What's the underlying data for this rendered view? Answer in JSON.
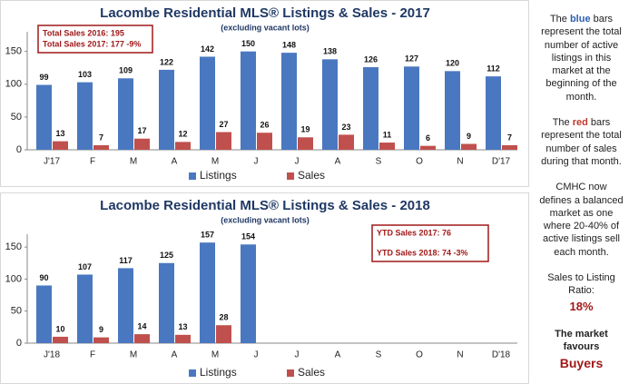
{
  "chart_data": [
    {
      "type": "bar",
      "title": "Lacombe Residential MLS® Listings & Sales - 2017",
      "subtitle": "(excluding vacant lots)",
      "categories": [
        "J'17",
        "F",
        "M",
        "A",
        "M",
        "J",
        "J",
        "A",
        "S",
        "O",
        "N",
        "D'17"
      ],
      "series": [
        {
          "name": "Listings",
          "color": "#4a78c0",
          "values": [
            99,
            103,
            109,
            122,
            142,
            150,
            148,
            138,
            126,
            127,
            120,
            112
          ]
        },
        {
          "name": "Sales",
          "color": "#c0504d",
          "values": [
            13,
            7,
            17,
            12,
            27,
            26,
            19,
            23,
            11,
            6,
            9,
            7
          ]
        }
      ],
      "ylim": [
        0,
        180
      ],
      "yticks": [
        0,
        50,
        100,
        150
      ],
      "annotations": [
        "Total Sales 2016: 195",
        "Total Sales 2017: 177 -9%"
      ]
    },
    {
      "type": "bar",
      "title": "Lacombe Residential MLS® Listings & Sales - 2018",
      "subtitle": "(excluding vacant lots)",
      "categories": [
        "J'18",
        "F",
        "M",
        "A",
        "M",
        "J",
        "J",
        "A",
        "S",
        "O",
        "N",
        "D'18"
      ],
      "series": [
        {
          "name": "Listings",
          "color": "#4a78c0",
          "values": [
            90,
            107,
            117,
            125,
            157,
            154,
            null,
            null,
            null,
            null,
            null,
            null
          ]
        },
        {
          "name": "Sales",
          "color": "#c0504d",
          "values": [
            10,
            9,
            14,
            13,
            28,
            null,
            null,
            null,
            null,
            null,
            null,
            null
          ]
        }
      ],
      "ylim": [
        0,
        170
      ],
      "yticks": [
        0,
        50,
        100,
        150
      ],
      "annotations": [
        "YTD Sales 2017: 76",
        "YTD Sales 2018: 74 -3%"
      ]
    }
  ],
  "sidebar": {
    "p1": [
      "The ",
      "blue",
      " bars represent the total number of active listings in this market at the beginning of the month."
    ],
    "p2": [
      "The ",
      "red",
      " bars represent the total number of sales during that month."
    ],
    "p3": "CMHC now defines a balanced market as one where 20-40% of active listings sell each month.",
    "ratio_label": "Sales to Listing Ratio:",
    "ratio": "18%",
    "market_label": "The market favours",
    "market": "Buyers"
  }
}
